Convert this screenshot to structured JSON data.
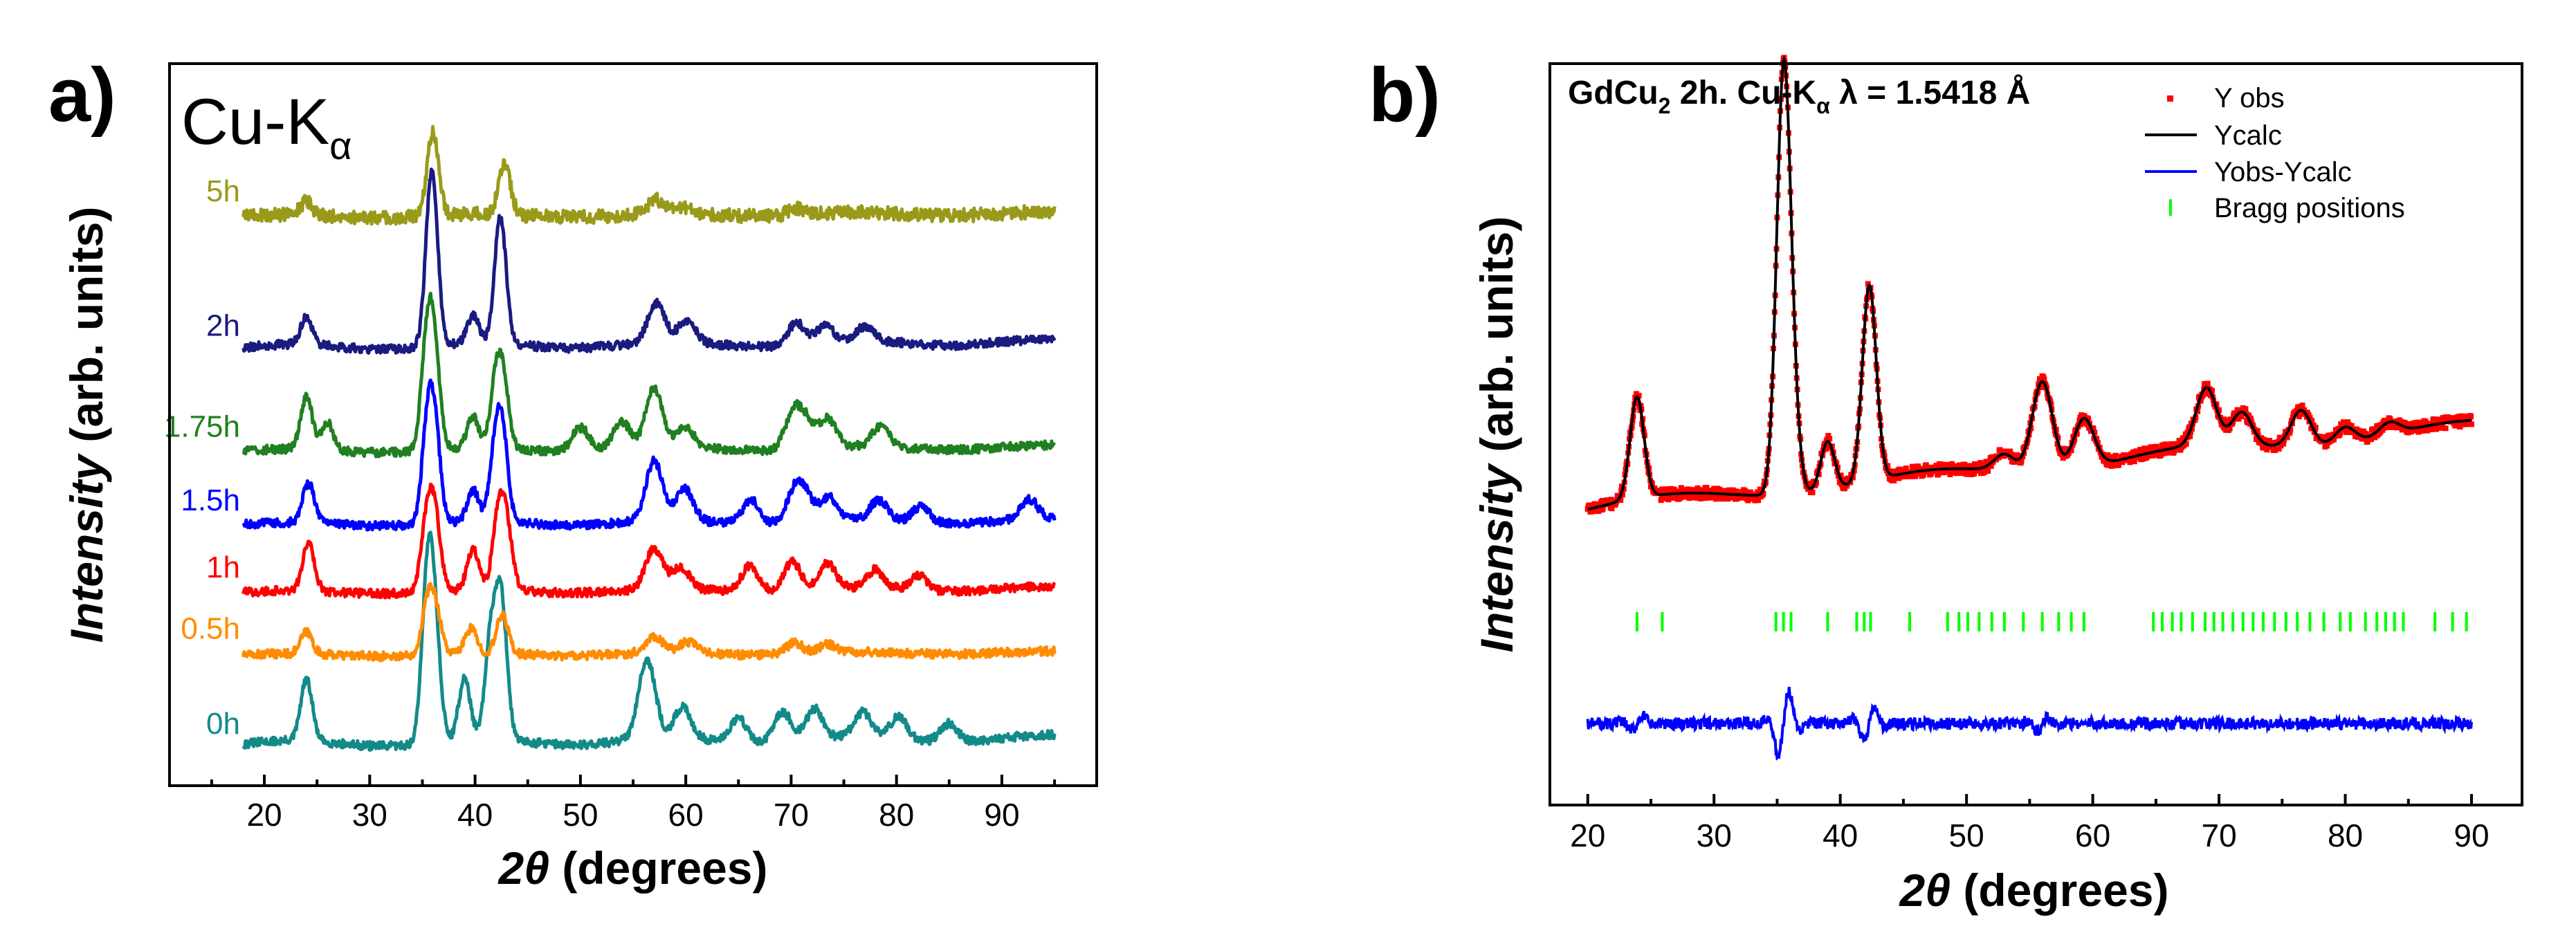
{
  "chart_data": [
    {
      "panel": "a)",
      "type": "line",
      "annotation": {
        "main": "Cu-K",
        "sub": "α"
      },
      "xlabel": "2θ (degrees)",
      "ylabel": "Intensity (arb. units)",
      "xlim": [
        11,
        99
      ],
      "ylim": [
        -0.5,
        11.3
      ],
      "xticks": [
        20,
        30,
        40,
        50,
        60,
        70,
        80,
        90
      ],
      "x_range": [
        18,
        95
      ],
      "peaks_note": "peak 2θ positions in degrees",
      "series": [
        {
          "name": "0h",
          "color": "#138a8a",
          "offset": 0.0,
          "scale": 1.0,
          "marker": "square",
          "peaks": [
            [
              24.0,
              1.0
            ],
            [
              35.5,
              2.6
            ],
            [
              36.2,
              1.5
            ],
            [
              39.0,
              1.0
            ],
            [
              41.5,
              1.6
            ],
            [
              42.5,
              2.2
            ],
            [
              56.3,
              1.3
            ],
            [
              59.7,
              0.5
            ],
            [
              65.0,
              0.4
            ],
            [
              69.2,
              0.5
            ],
            [
              72.2,
              0.5
            ],
            [
              76.8,
              0.4
            ],
            [
              80.2,
              0.35
            ],
            [
              85.0,
              0.3
            ]
          ]
        },
        {
          "name": "0.5h",
          "color": "#ff8c00",
          "offset": 1.55,
          "scale": 0.45,
          "marker": "circle",
          "peaks": [
            [
              24.0,
              0.8
            ],
            [
              35.5,
              1.8
            ],
            [
              36.3,
              1.4
            ],
            [
              39.6,
              0.9
            ],
            [
              42.6,
              1.4
            ],
            [
              57.0,
              0.6
            ],
            [
              60.2,
              0.4
            ],
            [
              70.3,
              0.4
            ],
            [
              73.5,
              0.3
            ]
          ]
        },
        {
          "name": "1h",
          "color": "#ff0000",
          "offset": 2.55,
          "scale": 0.6,
          "marker": "triangle-up",
          "peaks": [
            [
              24.2,
              1.3
            ],
            [
              35.4,
              1.8
            ],
            [
              36.2,
              1.9
            ],
            [
              39.8,
              1.1
            ],
            [
              42.2,
              1.9
            ],
            [
              43.0,
              1.6
            ],
            [
              57.0,
              1.1
            ],
            [
              59.5,
              0.6
            ],
            [
              66.1,
              0.7
            ],
            [
              70.1,
              0.8
            ],
            [
              73.4,
              0.7
            ],
            [
              78.0,
              0.5
            ],
            [
              82.1,
              0.4
            ]
          ]
        },
        {
          "name": "1.5h",
          "color": "#0000ff",
          "offset": 3.65,
          "scale": 0.65,
          "marker": "triangle-down",
          "peaks": [
            [
              24.2,
              1.0
            ],
            [
              35.5,
              2.3
            ],
            [
              36.2,
              2.0
            ],
            [
              39.8,
              0.8
            ],
            [
              41.9,
              1.6
            ],
            [
              42.6,
              2.0
            ],
            [
              57.0,
              1.5
            ],
            [
              59.9,
              0.8
            ],
            [
              66.2,
              0.6
            ],
            [
              70.3,
              0.7
            ],
            [
              71.3,
              0.6
            ],
            [
              73.6,
              0.6
            ],
            [
              78.3,
              0.5
            ],
            [
              82.3,
              0.4
            ],
            [
              92.6,
              0.5
            ]
          ]
        },
        {
          "name": "1.75h",
          "color": "#208020",
          "offset": 4.85,
          "scale": 0.65,
          "marker": "diamond",
          "peaks": [
            [
              24.0,
              1.3
            ],
            [
              26.0,
              0.7
            ],
            [
              35.4,
              2.3
            ],
            [
              36.1,
              2.4
            ],
            [
              39.8,
              0.8
            ],
            [
              42.0,
              1.6
            ],
            [
              42.7,
              1.4
            ],
            [
              50.0,
              0.6
            ],
            [
              53.9,
              0.7
            ],
            [
              57.0,
              1.5
            ],
            [
              60.0,
              0.5
            ],
            [
              70.2,
              0.9
            ],
            [
              71.5,
              0.6
            ],
            [
              73.5,
              0.7
            ],
            [
              78.5,
              0.5
            ]
          ]
        },
        {
          "name": "2h",
          "color": "#1a1a80",
          "offset": 6.5,
          "scale": 0.9,
          "marker": "triangle-left",
          "peaks": [
            [
              24.0,
              0.5
            ],
            [
              35.9,
              3.2
            ],
            [
              39.8,
              0.5
            ],
            [
              42.4,
              2.3
            ],
            [
              57.2,
              0.7
            ],
            [
              60.1,
              0.4
            ],
            [
              70.5,
              0.4
            ],
            [
              73.2,
              0.3
            ],
            [
              77.0,
              0.25
            ]
          ]
        },
        {
          "name": "5h",
          "color": "#9a9a1a",
          "offset": 8.7,
          "scale": 0.55,
          "marker": "triangle-right",
          "peaks": [
            [
              24.0,
              0.4
            ],
            [
              36.0,
              2.5
            ],
            [
              42.8,
              1.5
            ],
            [
              57.2,
              0.4
            ],
            [
              59.5,
              0.2
            ],
            [
              70.5,
              0.2
            ]
          ]
        }
      ]
    },
    {
      "panel": "b)",
      "type": "line",
      "title": {
        "main": "GdCu",
        "sub1": "2",
        "mid": " 2h. Cu-K",
        "sub2": "α",
        "tail": " λ = 1.5418 Å"
      },
      "xlabel": "2θ (degrees)",
      "ylabel": "Intensity (arb. units)",
      "xlim": [
        17,
        94
      ],
      "ylim": [
        -0.7,
        1.12
      ],
      "xticks": [
        20,
        30,
        40,
        50,
        60,
        70,
        80,
        90
      ],
      "x_range": [
        20,
        90
      ],
      "legend": {
        "position": "top-right",
        "entries": [
          "Y obs",
          "Ycalc",
          "Yobs-Ycalc",
          "Bragg positions"
        ]
      },
      "colors": {
        "yobs": "#ff0000",
        "ycalc": "#000000",
        "diff": "#0000ff",
        "bragg": "#00ff00"
      },
      "profile_base": {
        "start": 0.03,
        "end": 0.23
      },
      "peaks": [
        [
          23.9,
          0.25
        ],
        [
          35.5,
          1.0
        ],
        [
          36.2,
          0.15
        ],
        [
          39.0,
          0.12
        ],
        [
          42.3,
          0.48
        ],
        [
          53.0,
          0.04
        ],
        [
          56.0,
          0.22
        ],
        [
          59.3,
          0.12
        ],
        [
          69.0,
          0.14
        ],
        [
          71.8,
          0.08
        ],
        [
          76.5,
          0.09
        ],
        [
          80.0,
          0.04
        ],
        [
          83.5,
          0.03
        ]
      ],
      "difference_offset": -0.5,
      "bragg_level": -0.25,
      "bragg_positions": [
        23.9,
        25.9,
        34.9,
        35.5,
        36.1,
        39.0,
        41.3,
        41.9,
        42.4,
        45.5,
        48.5,
        49.4,
        50.1,
        51.0,
        52.0,
        53.0,
        54.5,
        56.0,
        57.3,
        58.3,
        59.3,
        64.8,
        65.5,
        66.3,
        67.0,
        67.9,
        68.9,
        69.6,
        70.3,
        71.1,
        71.9,
        72.7,
        73.5,
        74.4,
        75.3,
        76.2,
        77.2,
        78.3,
        79.6,
        80.4,
        81.6,
        82.5,
        83.2,
        83.9,
        84.6,
        87.1,
        88.5,
        89.6
      ]
    }
  ]
}
